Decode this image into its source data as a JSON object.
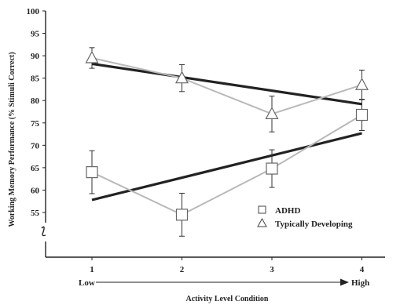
{
  "chart_data": {
    "type": "line",
    "title": "",
    "xlabel": "Activity Level Condition",
    "ylabel": "Working Memory Performance (% Stimuli Correct)",
    "x": [
      1,
      2,
      3,
      4
    ],
    "x_ticks": [
      "1",
      "2",
      "3",
      "4"
    ],
    "x_range_labels": {
      "low": "Low",
      "high": "High"
    },
    "ylim": [
      50,
      100
    ],
    "y_ticks": [
      55,
      60,
      65,
      70,
      75,
      80,
      85,
      90,
      95,
      100
    ],
    "y_axis_break": true,
    "grid": false,
    "legend_position": "bottom-right",
    "series": [
      {
        "name": "ADHD",
        "marker": "square",
        "color": "#b9b9b9",
        "values": [
          64,
          54.5,
          64.8,
          76.8
        ],
        "error": [
          4.8,
          4.8,
          4.2,
          3.5
        ],
        "trend": [
          57.8,
          72.7
        ]
      },
      {
        "name": "Typically Developing",
        "marker": "triangle",
        "color": "#b9b9b9",
        "values": [
          89.5,
          85,
          77,
          83.5
        ],
        "error": [
          2.3,
          3.0,
          4.0,
          3.3
        ],
        "trend": [
          88.2,
          79.2
        ]
      }
    ],
    "trend_color": "#222222"
  }
}
